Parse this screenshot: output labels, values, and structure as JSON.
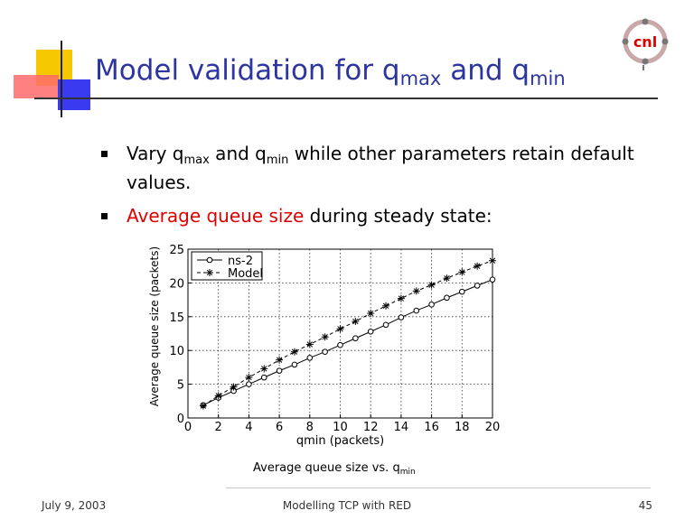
{
  "slide": {
    "title_main": "Model validation for q",
    "title_sub1": "max",
    "title_mid": " and q",
    "title_sub2": "min",
    "logo_text": "cnl",
    "bullets": [
      {
        "p1": "Vary q",
        "s1": "max",
        "p2": " and q",
        "s2": "min",
        "p3": " while other parameters retain default values."
      },
      {
        "red": "Average queue size",
        "rest": " during steady state:"
      }
    ],
    "caption_main": "Average queue size vs. q",
    "caption_sub": "min",
    "footer": {
      "date": "July 9, 2003",
      "title": "Modelling TCP with RED",
      "page": "45"
    }
  },
  "colors": {
    "title": "#2d36a0",
    "highlight": "#e00000",
    "deco_yellow": "#f5c800",
    "deco_red": "#ff6a6a",
    "deco_blue": "#3a3af0"
  },
  "chart_data": {
    "type": "line",
    "title": "",
    "xlabel": "qmin (packets)",
    "ylabel": "Average queue size (packets)",
    "xlim": [
      0,
      20
    ],
    "ylim": [
      0,
      25
    ],
    "xticks": [
      0,
      2,
      4,
      6,
      8,
      10,
      12,
      14,
      16,
      18,
      20
    ],
    "yticks": [
      0,
      5,
      10,
      15,
      20,
      25
    ],
    "grid": true,
    "legend_position": "top-left",
    "x": [
      1,
      2,
      3,
      4,
      5,
      6,
      7,
      8,
      9,
      10,
      11,
      12,
      13,
      14,
      15,
      16,
      17,
      18,
      19,
      20
    ],
    "series": [
      {
        "name": "ns-2",
        "marker": "circle",
        "linestyle": "solid",
        "values": [
          1.9,
          3.0,
          4.0,
          5.0,
          6.0,
          7.0,
          7.9,
          8.9,
          9.8,
          10.8,
          11.8,
          12.8,
          13.8,
          14.9,
          15.9,
          16.8,
          17.8,
          18.7,
          19.6,
          20.5
        ]
      },
      {
        "name": "Model",
        "marker": "star",
        "linestyle": "dashed",
        "values": [
          1.8,
          3.3,
          4.6,
          6.0,
          7.3,
          8.6,
          9.8,
          10.9,
          12.0,
          13.2,
          14.3,
          15.5,
          16.6,
          17.7,
          18.8,
          19.7,
          20.7,
          21.6,
          22.5,
          23.3
        ]
      }
    ]
  }
}
